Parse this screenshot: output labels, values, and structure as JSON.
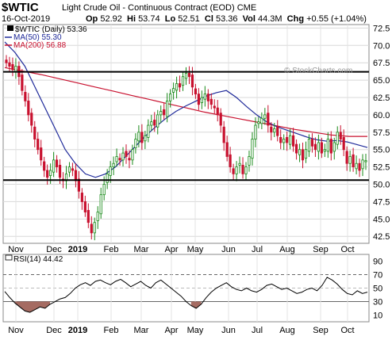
{
  "header": {
    "symbol": "$WTIC",
    "name": "Light Crude Oil - Continuous Contract (EOD)",
    "exchange": "CME",
    "date": "16-Oct-2019",
    "open_label": "Op",
    "open": "52.92",
    "high_label": "Hi",
    "high": "53.74",
    "low_label": "Lo",
    "low": "52.51",
    "close_label": "Cl",
    "close": "53.36",
    "volume_label": "Vol",
    "volume": "44.3M",
    "change_label": "Chg",
    "change": "+0.55 (+1.04%)"
  },
  "watermark": "© StockCharts.com",
  "legend": {
    "items": [
      {
        "label": "$WTIC (Daily) 53.36",
        "color": "#000000"
      },
      {
        "label": "MA(50) 55.30",
        "color": "#1f2a9a"
      },
      {
        "label": "MA(200) 56.88",
        "color": "#c8102e"
      }
    ]
  },
  "rsi_legend": "RSI(14) 44.42",
  "colors": {
    "up": "#1a8a1a",
    "down": "#c8102e",
    "ma50": "#1f2a9a",
    "ma200": "#c8102e",
    "rsi_fill": "#a56b62"
  },
  "chart_data": [
    {
      "type": "candlestick",
      "title": "$WTIC (Daily)",
      "ylim": [
        41.5,
        73.0
      ],
      "y_ticks": [
        "42.5",
        "45.0",
        "47.5",
        "50.0",
        "52.5",
        "55.0",
        "57.5",
        "60.0",
        "62.5",
        "65.0",
        "67.5",
        "70.0",
        "72.5"
      ],
      "x_labels": [
        "Nov",
        "Dec",
        "2019",
        "Feb",
        "Mar",
        "Apr",
        "May",
        "Jun",
        "Jul",
        "Aug",
        "Sep",
        "Oct"
      ],
      "horizontal_lines": [
        66.2,
        50.6
      ],
      "series": [
        {
          "name": "$WTIC (Daily)",
          "close": [
            67.5,
            67.0,
            66.5,
            67.0,
            65.5,
            63.5,
            62.0,
            60.0,
            58.5,
            56.5,
            55.0,
            53.5,
            52.0,
            51.0,
            52.0,
            53.5,
            52.5,
            51.0,
            50.5,
            51.5,
            52.5,
            52.0,
            50.5,
            49.0,
            47.5,
            46.0,
            44.5,
            43.0,
            44.5,
            46.0,
            48.5,
            50.0,
            51.5,
            52.5,
            53.0,
            54.0,
            53.5,
            54.5,
            54.0,
            53.5,
            55.0,
            56.5,
            57.5,
            56.0,
            57.0,
            58.5,
            59.0,
            58.5,
            60.0,
            60.5,
            60.0,
            62.0,
            63.0,
            63.8,
            64.5,
            64.0,
            65.5,
            66.0,
            65.5,
            64.0,
            63.0,
            61.5,
            62.5,
            63.0,
            62.0,
            61.5,
            61.0,
            60.0,
            58.5,
            56.0,
            54.0,
            52.5,
            51.5,
            52.5,
            53.0,
            51.5,
            52.5,
            54.0,
            56.5,
            58.5,
            59.0,
            59.5,
            60.0,
            58.5,
            57.5,
            58.0,
            57.0,
            56.0,
            56.5,
            56.0,
            57.0,
            55.5,
            54.5,
            55.0,
            53.5,
            55.0,
            56.5,
            55.5,
            55.0,
            56.0,
            54.5,
            55.0,
            56.5,
            54.5,
            56.0,
            57.5,
            56.5,
            55.0,
            53.0,
            54.0,
            52.5,
            53.0,
            52.0,
            53.5,
            53.4
          ]
        },
        {
          "name": "MA(50)",
          "values": [
            70.5,
            69.0,
            67.0,
            64.0,
            61.0,
            58.0,
            55.0,
            53.0,
            51.5,
            51.0,
            51.5,
            52.5,
            54.0,
            55.5,
            57.0,
            58.3,
            59.5,
            60.5,
            61.3,
            62.0,
            62.7,
            63.2,
            63.5,
            62.5,
            61.2,
            60.0,
            59.0,
            58.3,
            57.8,
            57.3,
            56.8,
            56.4,
            56.2,
            56.3,
            56.1,
            55.7,
            55.3
          ]
        },
        {
          "name": "MA(200)",
          "values": [
            66.8,
            66.3,
            65.8,
            65.2,
            64.6,
            64.0,
            63.4,
            62.8,
            62.2,
            61.6,
            61.0,
            60.4,
            59.9,
            59.4,
            58.9,
            58.4,
            57.9,
            57.5,
            57.1,
            56.9,
            56.9
          ]
        }
      ]
    },
    {
      "type": "line",
      "title": "RSI(14)",
      "ylim": [
        0,
        100
      ],
      "y_ticks": [
        "10",
        "30",
        "50",
        "70",
        "90"
      ],
      "reference_levels": [
        70,
        30
      ],
      "x_labels": [
        "Nov",
        "Dec",
        "2019",
        "Feb",
        "Mar",
        "Apr",
        "May",
        "Jun",
        "Jul",
        "Aug",
        "Sep",
        "Oct"
      ],
      "series": [
        {
          "name": "RSI(14)",
          "values": [
            45,
            36,
            28,
            22,
            16,
            14,
            18,
            22,
            20,
            26,
            30,
            34,
            36,
            42,
            50,
            55,
            58,
            54,
            60,
            62,
            58,
            55,
            60,
            63,
            58,
            52,
            56,
            60,
            54,
            50,
            58,
            62,
            56,
            50,
            44,
            38,
            30,
            24,
            20,
            26,
            36,
            44,
            50,
            54,
            58,
            52,
            48,
            46,
            50,
            46,
            44,
            48,
            54,
            56,
            52,
            48,
            50,
            46,
            42,
            44,
            48,
            50,
            46,
            54,
            66,
            62,
            56,
            48,
            42,
            40,
            46,
            42,
            44
          ]
        }
      ]
    }
  ]
}
